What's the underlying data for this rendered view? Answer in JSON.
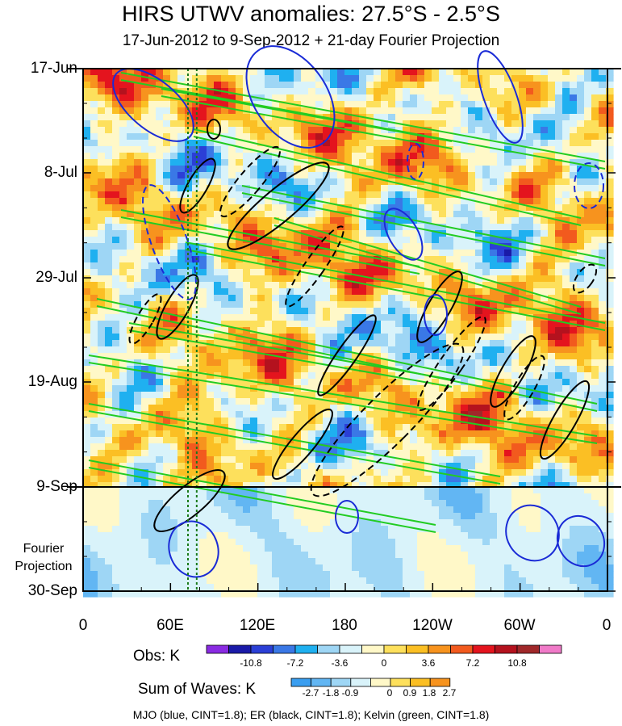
{
  "chart_data": {
    "type": "heatmap",
    "title": "HIRS UTWV anomalies: 27.5°S - 2.5°S",
    "subtitle": "17-Jun-2012 to 9-Sep-2012 + 21-day Fourier Projection",
    "y_axis": {
      "ticks": [
        "17-Jun",
        "8-Jul",
        "29-Jul",
        "19-Aug",
        "9-Sep",
        "30-Sep"
      ],
      "projection_label_line1": "Fourier",
      "projection_label_line2": "Projection",
      "range": [
        "17-Jun-2012",
        "30-Sep-2012"
      ],
      "observation_end": "9-Sep"
    },
    "x_axis": {
      "ticks": [
        "0",
        "60E",
        "120E",
        "180",
        "120W",
        "60W",
        "0"
      ],
      "range_degrees_east": [
        0,
        360
      ]
    },
    "obs_colorbar": {
      "label": "Obs: K",
      "tick_labels": [
        "-10.8",
        "-7.2",
        "-3.6",
        "0",
        "3.6",
        "7.2",
        "10.8"
      ],
      "colors": [
        "#8a2be2",
        "#1a1aa8",
        "#2b3fd6",
        "#3a78e6",
        "#1fb0f0",
        "#9ed6f5",
        "#d9f3fa",
        "#fff8c8",
        "#fde05c",
        "#fbbf24",
        "#f7931e",
        "#f25a1e",
        "#e4141e",
        "#b4121e",
        "#a0282a",
        "#f07ac8"
      ]
    },
    "waves_colorbar": {
      "label": "Sum of Waves: K",
      "tick_labels": [
        "-2.7",
        "-1.8",
        "-0.9",
        "0",
        "0.9",
        "1.8",
        "2.7"
      ],
      "colors": [
        "#3a9ef0",
        "#62b6f3",
        "#9ed6f5",
        "#d9f3fa",
        "#fff8c8",
        "#fde05c",
        "#fbbf24",
        "#f7931e"
      ]
    },
    "contours": {
      "legend_text": "MJO (blue, CINT=1.8); ER (black, CINT=1.8); Kelvin (green, CINT=1.8)",
      "mjo_color": "#1a2bd6",
      "er_color": "#000000",
      "kelvin_color": "#22cc22"
    },
    "reference_lines": {
      "dotted_longitudes_deg": [
        72,
        78
      ],
      "dotted_color": "#1a7a1a"
    }
  }
}
